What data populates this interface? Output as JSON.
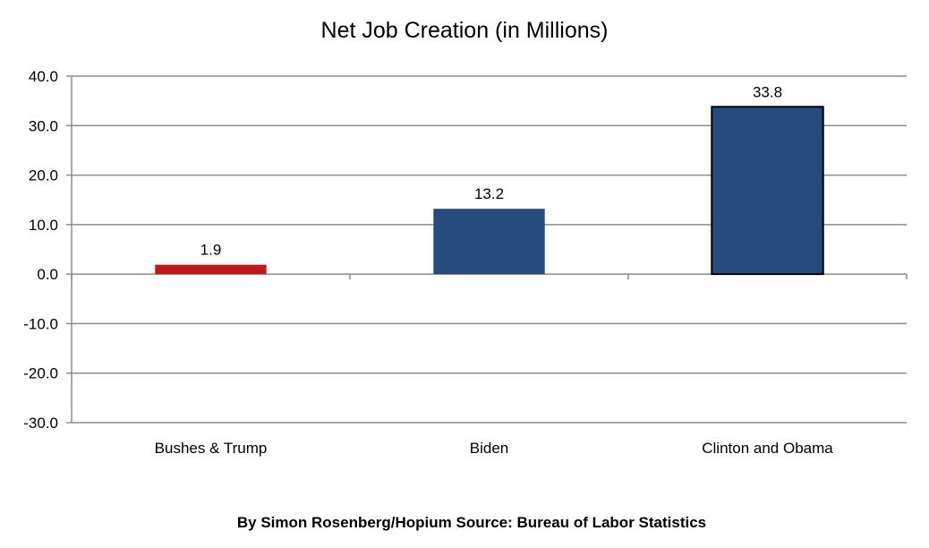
{
  "chart_data": {
    "type": "bar",
    "title": "Net Job Creation (in Millions)",
    "categories": [
      "Bushes & Trump",
      "Biden",
      "Clinton and Obama"
    ],
    "values": [
      1.9,
      13.2,
      33.8
    ],
    "data_labels": [
      "1.9",
      "13.2",
      "33.8"
    ],
    "bar_colors": [
      "#c0191c",
      "#264b7f",
      "#264b7f"
    ],
    "bar_outline_colors": [
      "none",
      "none",
      "#000000"
    ],
    "ylim": [
      -30,
      40
    ],
    "yticks": [
      40,
      30,
      20,
      10,
      0,
      -10,
      -20,
      -30
    ],
    "ytick_labels": [
      "40.0",
      "30.0",
      "20.0",
      "10.0",
      "0.0",
      "-10.0",
      "-20.0",
      "-30.0"
    ],
    "xlabel": "",
    "ylabel": "",
    "grid": true,
    "gridline_color": "#8c8c8c",
    "axis_color": "#8c8c8c",
    "source": "By Simon Rosenberg/Hopium Source: Bureau of Labor Statistics"
  }
}
